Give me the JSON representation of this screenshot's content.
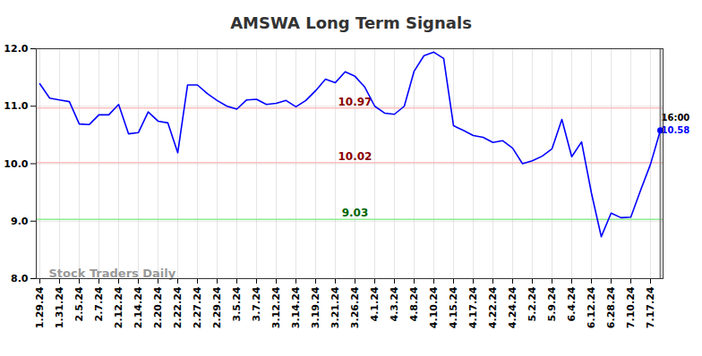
{
  "chart_data": {
    "type": "line",
    "title": "AMSWA Long Term Signals",
    "categories": [
      "1.29.24",
      null,
      "1.31.24",
      null,
      "2.5.24",
      null,
      "2.7.24",
      null,
      "2.12.24",
      null,
      "2.14.24",
      null,
      "2.20.24",
      null,
      "2.22.24",
      null,
      "2.27.24",
      null,
      "2.29.24",
      null,
      "3.5.24",
      null,
      "3.7.24",
      null,
      "3.12.24",
      null,
      "3.14.24",
      null,
      "3.19.24",
      null,
      "3.21.24",
      null,
      "3.26.24",
      null,
      "4.1.24",
      null,
      "4.3.24",
      null,
      "4.8.24",
      null,
      "4.10.24",
      null,
      "4.15.24",
      null,
      "4.17.24",
      null,
      "4.22.24",
      null,
      "4.24.24",
      null,
      "5.2.24",
      null,
      "5.9.24",
      null,
      "6.4.24",
      null,
      "6.12.24",
      null,
      "6.28.24",
      null,
      "7.10.24",
      null,
      "7.17.24",
      null
    ],
    "values": [
      11.39,
      11.14,
      11.11,
      11.08,
      10.69,
      10.68,
      10.85,
      10.85,
      11.03,
      10.52,
      10.54,
      10.9,
      10.74,
      10.71,
      10.19,
      11.37,
      11.37,
      11.22,
      11.1,
      11.0,
      10.95,
      11.11,
      11.12,
      11.03,
      11.05,
      11.1,
      10.99,
      11.1,
      11.27,
      11.47,
      11.41,
      11.6,
      11.52,
      11.33,
      11.0,
      10.88,
      10.86,
      11.0,
      11.61,
      11.88,
      11.94,
      11.83,
      10.66,
      10.58,
      10.49,
      10.46,
      10.37,
      10.4,
      10.27,
      10.0,
      10.05,
      10.13,
      10.26,
      10.77,
      10.12,
      10.38,
      9.49,
      8.73,
      9.14,
      9.06,
      9.07,
      9.54,
      9.99,
      10.58
    ],
    "color": "#0000ff",
    "ylim": [
      8,
      12
    ],
    "yticks": [
      8,
      9,
      10,
      11,
      12
    ],
    "grid": true,
    "levels": [
      {
        "value": 10.97,
        "color": "#ffc0c0",
        "label_color": "#8b0000"
      },
      {
        "value": 10.02,
        "color": "#ffc0c0",
        "label_color": "#8b0000"
      },
      {
        "value": 9.03,
        "color": "#90ee90",
        "label_color": "#006400"
      }
    ],
    "last_point": {
      "time": "16:00",
      "value": 10.58
    },
    "watermark": "Stock Traders Daily"
  }
}
